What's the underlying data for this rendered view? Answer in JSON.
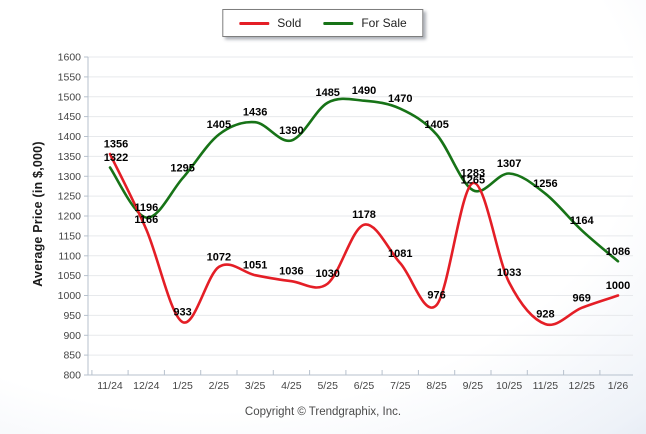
{
  "legend": {
    "items": [
      {
        "label": "Sold",
        "color": "#e41e26"
      },
      {
        "label": "For Sale",
        "color": "#177317"
      }
    ]
  },
  "chart_data": {
    "type": "line",
    "title": "",
    "xlabel": "",
    "ylabel": "Average Price (in $,000)",
    "categories": [
      "11/24",
      "12/24",
      "1/25",
      "2/25",
      "3/25",
      "4/25",
      "5/25",
      "6/25",
      "7/25",
      "8/25",
      "9/25",
      "10/25",
      "11/25",
      "12/25",
      "1/26"
    ],
    "series": [
      {
        "name": "Sold",
        "color": "#e41e26",
        "values": [
          1356,
          1166,
          933,
          1072,
          1051,
          1036,
          1030,
          1178,
          1081,
          976,
          1283,
          1033,
          928,
          969,
          1000
        ]
      },
      {
        "name": "For Sale",
        "color": "#177317",
        "values": [
          1322,
          1196,
          1295,
          1405,
          1436,
          1390,
          1485,
          1490,
          1470,
          1405,
          1265,
          1307,
          1256,
          1164,
          1086
        ]
      }
    ],
    "ylim": [
      800,
      1600
    ],
    "ytick_step": 50,
    "grid": true,
    "smooth": true,
    "point_labels": true,
    "legend_position": "top-center",
    "colors": {
      "grid_line": "#e7e9ec",
      "axis_line": "#b7c1cd",
      "tick_text": "#454545",
      "point_label_text": "#000000"
    }
  },
  "footer": {
    "text": "Copyright © Trendgraphix, Inc."
  }
}
